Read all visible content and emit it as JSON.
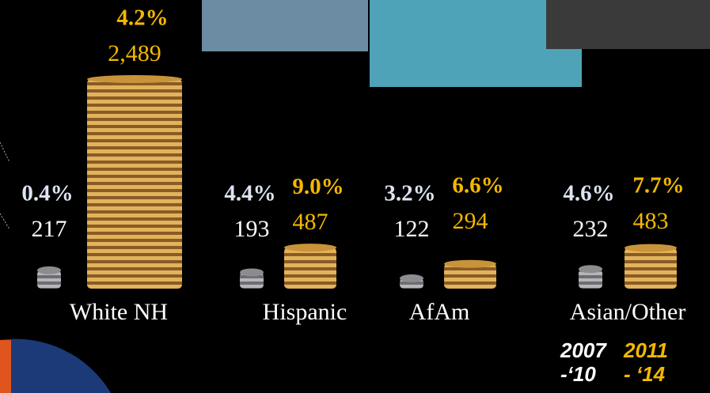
{
  "chart_data": {
    "type": "bar",
    "categories": [
      "White NH",
      "Hispanic",
      "AfAm",
      "Asian/Other"
    ],
    "series": [
      {
        "name": "2007\n-‘10",
        "color": "#8c8c90",
        "values": [
          217,
          193,
          122,
          232
        ],
        "growth_labels": [
          "0.4%",
          "4.4%",
          "3.2%",
          "4.6%"
        ]
      },
      {
        "name": "2011\n- ‘14",
        "color": "#c9933a",
        "values": [
          2489,
          487,
          294,
          483
        ],
        "value_labels": [
          "2,489",
          "487",
          "294",
          "483"
        ],
        "growth_labels": [
          "4.2%",
          "9.0%",
          "6.6%",
          "7.7%"
        ]
      }
    ]
  }
}
